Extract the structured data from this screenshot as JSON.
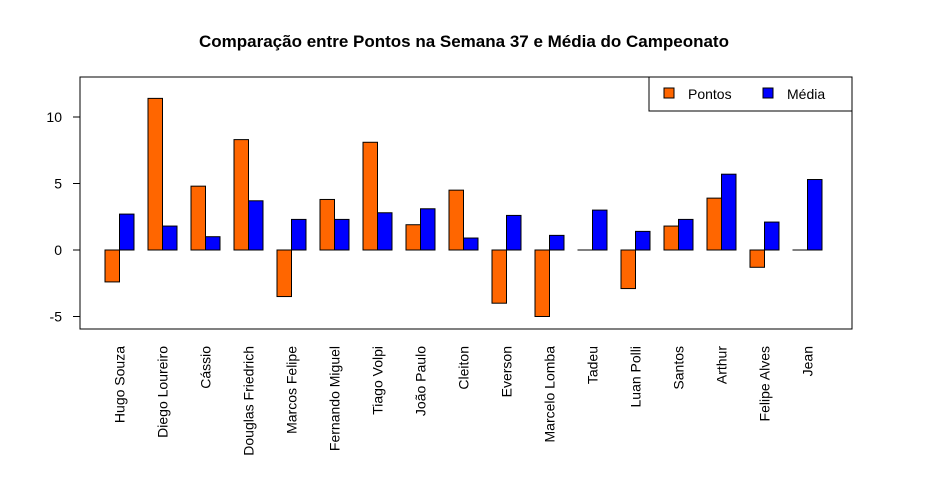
{
  "chart_data": {
    "type": "bar",
    "title": "Comparação entre Pontos na Semana 37 e Média do Campeonato",
    "xlabel": "",
    "ylabel": "",
    "ylim": [
      -6,
      13
    ],
    "yticks": [
      -5,
      0,
      5,
      10
    ],
    "grid": false,
    "legend_position": "top-right",
    "categories": [
      "Hugo Souza",
      "Diego Loureiro",
      "Cássio",
      "Douglas Friedrich",
      "Marcos Felipe",
      "Fernando Miguel",
      "Tiago Volpi",
      "João Paulo",
      "Cleiton",
      "Everson",
      "Marcelo Lomba",
      "Tadeu",
      "Luan Polli",
      "Santos",
      "Arthur",
      "Felipe Alves",
      "Jean"
    ],
    "series": [
      {
        "name": "Pontos",
        "color": "#FF6600",
        "values": [
          -2.4,
          11.4,
          4.8,
          8.3,
          -3.5,
          3.8,
          8.1,
          1.9,
          4.5,
          -4.0,
          -5.0,
          0.0,
          -2.9,
          1.8,
          3.9,
          -1.3,
          0.0
        ]
      },
      {
        "name": "Média",
        "color": "#0000FF",
        "values": [
          2.7,
          1.8,
          1.0,
          3.7,
          2.3,
          2.3,
          2.8,
          3.1,
          0.9,
          2.6,
          1.1,
          3.0,
          1.4,
          2.3,
          5.7,
          2.1,
          5.3
        ]
      }
    ]
  }
}
